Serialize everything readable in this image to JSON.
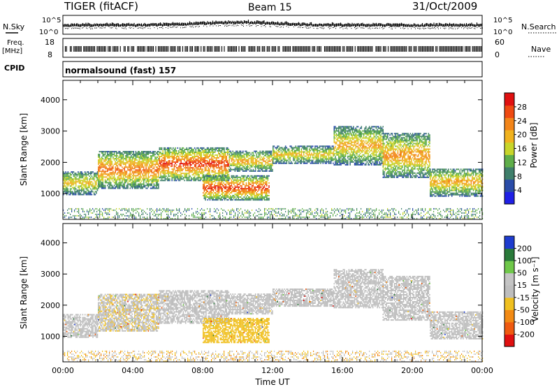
{
  "header": {
    "title": "TIGER (fitACF)",
    "beam": "Beam 15",
    "date": "31/Oct/2009"
  },
  "noise_panel": {
    "left_label": "N.Sky",
    "left_top_tick": "10^5",
    "left_bottom_tick": "10^0",
    "right_label": "N.Search",
    "right_top_tick": "10^5",
    "right_bottom_tick": "10^0"
  },
  "freq_panel": {
    "left_label_line1": "Freq.",
    "left_label_line2": "[MHz]",
    "left_top_tick": "18",
    "left_bottom_tick": "8",
    "right_label": "Nave",
    "right_top_tick": "60",
    "right_bottom_tick": "0"
  },
  "cpid_panel": {
    "label": "CPID",
    "text": "normalsound (fast) 157"
  },
  "colors": {
    "power_scale": [
      "#1f1fe6",
      "#2a4ca8",
      "#3f7f6b",
      "#5fae4a",
      "#c8d52a",
      "#f0b21e",
      "#f2851a",
      "#ef4a12",
      "#e01010"
    ],
    "velocity_scale": [
      "#e01010",
      "#ef5a10",
      "#f28a14",
      "#f0c020",
      "#bebebe",
      "#c4c4c4",
      "#6fc84a",
      "#2a7a3a",
      "#1e3ccf"
    ]
  },
  "chart_data": [
    {
      "type": "heatmap",
      "panel": "power",
      "xlabel": "",
      "ylabel": "Slant Range [km]",
      "yticks": [
        "1000",
        "2000",
        "3000",
        "4000"
      ],
      "ylim": [
        180,
        4620
      ],
      "xlim_hours": [
        0,
        24
      ],
      "colorbar": {
        "label": "Power [dB]",
        "ticks": [
          "4",
          "8",
          "12",
          "16",
          "20",
          "24",
          "28"
        ],
        "range": [
          0,
          32
        ]
      },
      "echo_bands": [
        {
          "start_hr": 0.0,
          "end_hr": 2.0,
          "lo_km": 950,
          "hi_km": 1700,
          "peak_db": 20
        },
        {
          "start_hr": 2.0,
          "end_hr": 5.5,
          "lo_km": 1150,
          "hi_km": 2350,
          "peak_db": 26
        },
        {
          "start_hr": 5.5,
          "end_hr": 9.5,
          "lo_km": 1400,
          "hi_km": 2450,
          "peak_db": 30
        },
        {
          "start_hr": 8.0,
          "end_hr": 11.8,
          "lo_km": 780,
          "hi_km": 1550,
          "peak_db": 30
        },
        {
          "start_hr": 9.5,
          "end_hr": 12.0,
          "lo_km": 1700,
          "hi_km": 2350,
          "peak_db": 22
        },
        {
          "start_hr": 12.0,
          "end_hr": 15.5,
          "lo_km": 1950,
          "hi_km": 2500,
          "peak_db": 20
        },
        {
          "start_hr": 15.5,
          "end_hr": 18.3,
          "lo_km": 1900,
          "hi_km": 3150,
          "peak_db": 22
        },
        {
          "start_hr": 18.3,
          "end_hr": 21.0,
          "lo_km": 1500,
          "hi_km": 2900,
          "peak_db": 24
        },
        {
          "start_hr": 21.0,
          "end_hr": 24.0,
          "lo_km": 900,
          "hi_km": 1800,
          "peak_db": 22
        }
      ],
      "ground_clutter": {
        "lo_km": 180,
        "hi_km": 500,
        "peak_db": 10
      }
    },
    {
      "type": "heatmap",
      "panel": "velocity",
      "xlabel": "Time UT",
      "ylabel": "Slant Range [km]",
      "xticks": [
        "00:00",
        "04:00",
        "08:00",
        "12:00",
        "16:00",
        "20:00",
        "00:00"
      ],
      "yticks": [
        "1000",
        "2000",
        "3000",
        "4000"
      ],
      "ylim": [
        180,
        4620
      ],
      "xlim_hours": [
        0,
        24
      ],
      "colorbar": {
        "label": "Velocity [m s⁻¹]",
        "ticks": [
          "-200",
          "-100",
          "-50",
          "-15",
          "15",
          "50",
          "100",
          "200"
        ],
        "range": [
          -250,
          250
        ]
      },
      "echo_bands": [
        {
          "start_hr": 0.0,
          "end_hr": 2.0,
          "lo_km": 950,
          "hi_km": 1700,
          "vel_ms": 0
        },
        {
          "start_hr": 2.0,
          "end_hr": 5.5,
          "lo_km": 1150,
          "hi_km": 2350,
          "vel_ms": -20
        },
        {
          "start_hr": 5.5,
          "end_hr": 9.5,
          "lo_km": 1400,
          "hi_km": 2450,
          "vel_ms": -10
        },
        {
          "start_hr": 8.0,
          "end_hr": 11.8,
          "lo_km": 780,
          "hi_km": 1550,
          "vel_ms": -60
        },
        {
          "start_hr": 9.5,
          "end_hr": 12.0,
          "lo_km": 1700,
          "hi_km": 2350,
          "vel_ms": 0
        },
        {
          "start_hr": 12.0,
          "end_hr": 15.5,
          "lo_km": 1950,
          "hi_km": 2500,
          "vel_ms": 0
        },
        {
          "start_hr": 15.5,
          "end_hr": 18.3,
          "lo_km": 1900,
          "hi_km": 3150,
          "vel_ms": 0
        },
        {
          "start_hr": 18.3,
          "end_hr": 21.0,
          "lo_km": 1500,
          "hi_km": 2900,
          "vel_ms": 5
        },
        {
          "start_hr": 21.0,
          "end_hr": 24.0,
          "lo_km": 900,
          "hi_km": 1800,
          "vel_ms": 0
        }
      ],
      "ground_clutter": {
        "lo_km": 180,
        "hi_km": 500,
        "vel_ms": -30
      }
    }
  ]
}
